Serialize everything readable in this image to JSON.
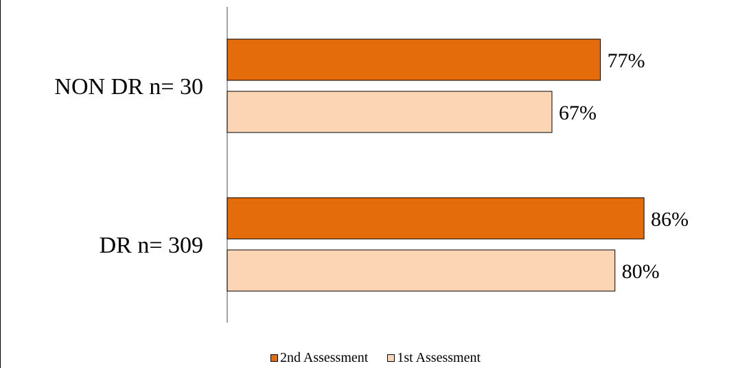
{
  "chart_data": {
    "type": "bar",
    "orientation": "horizontal",
    "categories": [
      "NON DR n= 30",
      "DR n= 309"
    ],
    "series": [
      {
        "name": "2nd Assessment",
        "values": [
          77,
          86
        ],
        "labels": [
          "77%",
          "86%"
        ],
        "color": "#e46c0a"
      },
      {
        "name": "1st Assessment",
        "values": [
          67,
          80
        ],
        "labels": [
          "67%",
          "80%"
        ],
        "color": "#fcd5b5"
      }
    ],
    "title": "",
    "xlabel": "",
    "ylabel": "",
    "xlim": [
      0,
      100
    ],
    "grid": false,
    "legend": "bottom"
  }
}
